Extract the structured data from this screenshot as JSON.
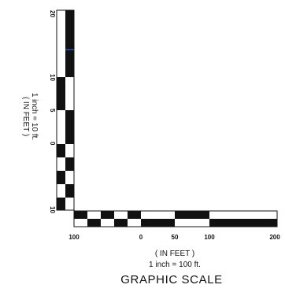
{
  "vertical_scale": {
    "labels": [
      "20",
      "10",
      "5",
      "0",
      "10"
    ],
    "units_caption": "( IN FEET )",
    "ratio_caption": "1 inch = 10 ft."
  },
  "horizontal_scale": {
    "labels": [
      "100",
      "0",
      "50",
      "100",
      "200"
    ],
    "units_caption": "( IN FEET )",
    "ratio_caption": "1 inch = 100 ft."
  },
  "title": "GRAPHIC SCALE",
  "colors": {
    "ink": "#111111",
    "paper": "#ffffff",
    "stray_mark": "#2a52be"
  }
}
